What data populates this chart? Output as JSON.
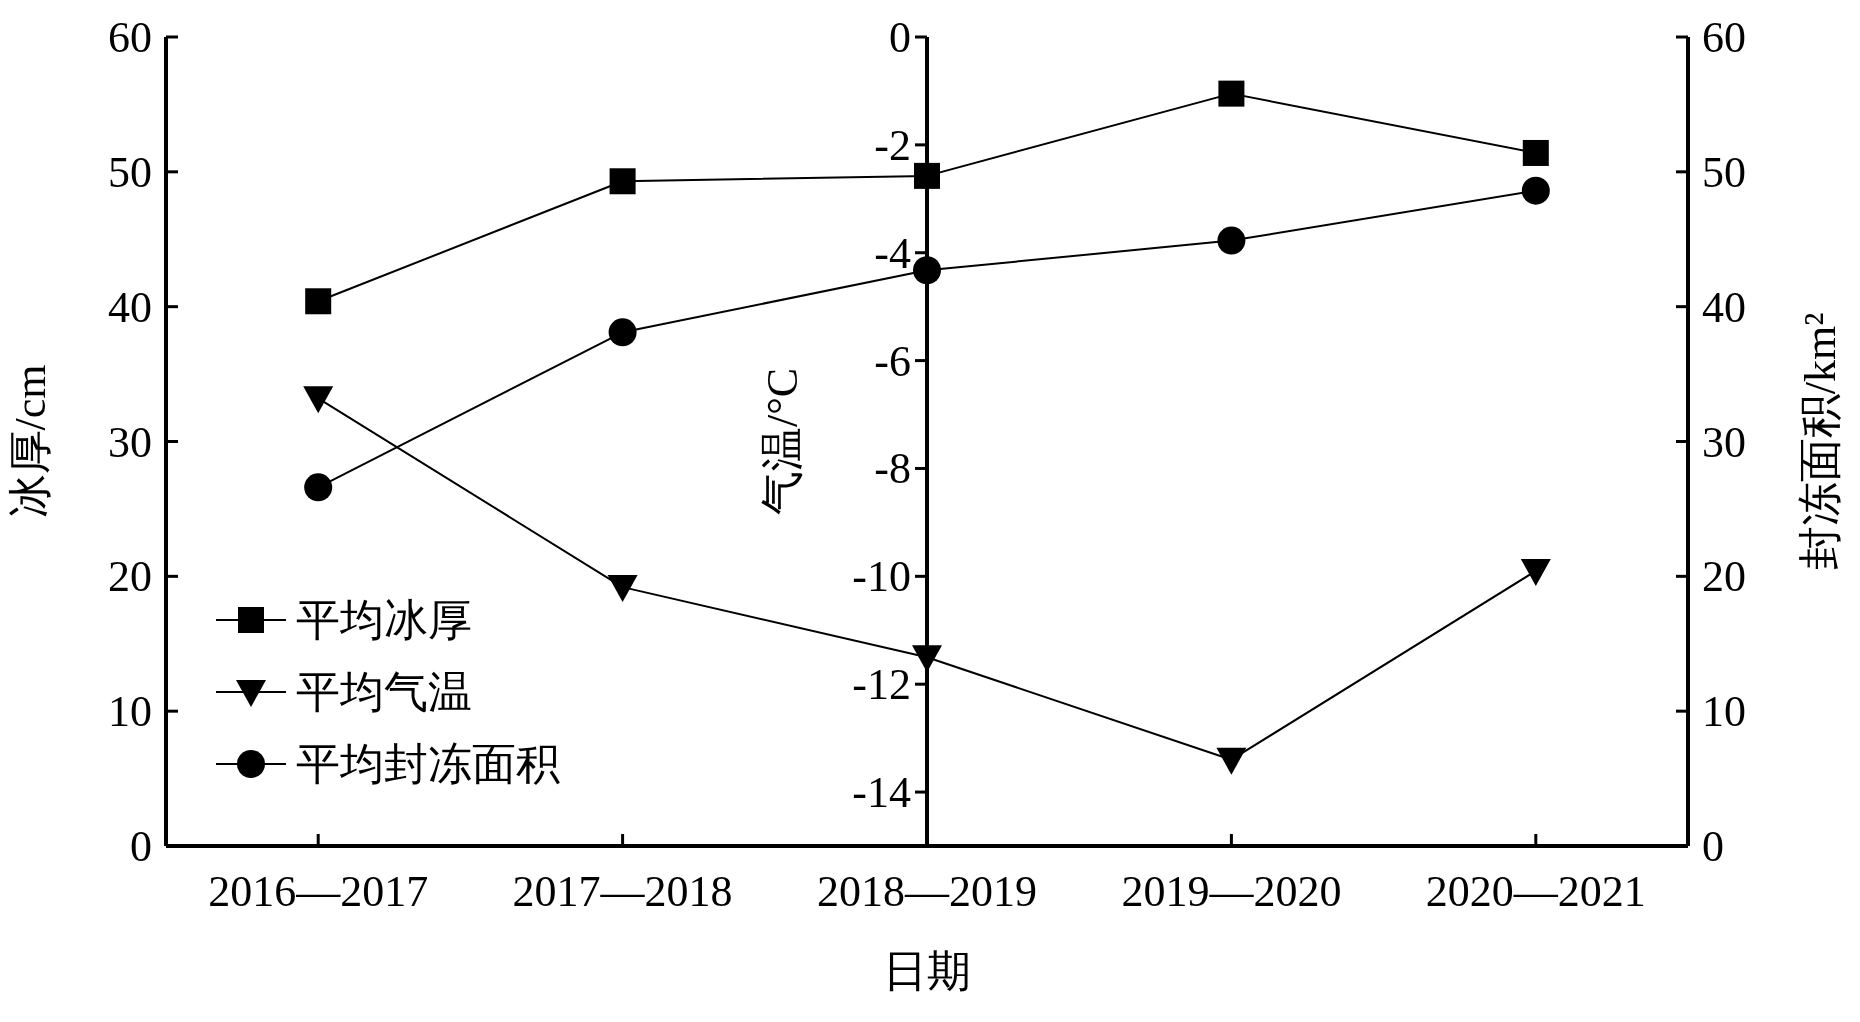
{
  "chart_data": {
    "type": "line",
    "xlabel": "日期",
    "ylabel": "冰厚/cm",
    "y2label": "封冻面积/km²",
    "y3label": "气温/°C",
    "categories": [
      "2016—2017",
      "2017—2018",
      "2018—2019",
      "2019—2020",
      "2020—2021"
    ],
    "series": [
      {
        "name": "平均冰厚",
        "color": "#000000",
        "marker": "square",
        "axis": "y",
        "values": [
          40.4,
          49.3,
          49.7,
          55.8,
          51.4
        ]
      },
      {
        "name": "平均气温",
        "color": "#000000",
        "marker": "triangle",
        "axis": "y3",
        "values": [
          -6.7,
          -10.2,
          -11.5,
          -13.4,
          -9.9
        ]
      },
      {
        "name": "平均封冻面积",
        "color": "#000000",
        "marker": "circle",
        "axis": "y2",
        "values": [
          26.6,
          38.1,
          42.7,
          44.9,
          48.6
        ]
      }
    ],
    "ylim": [
      0,
      60
    ],
    "yticks": [
      0,
      10,
      20,
      30,
      40,
      50,
      60
    ],
    "y2lim": [
      0,
      60
    ],
    "y2ticks": [
      0,
      10,
      20,
      30,
      40,
      50,
      60
    ],
    "y3lim": [
      -15,
      0
    ],
    "y3ticks": [
      0,
      -2,
      -4,
      -6,
      -8,
      -10,
      -12,
      -14
    ],
    "legend": "left",
    "line_style": "solid"
  }
}
